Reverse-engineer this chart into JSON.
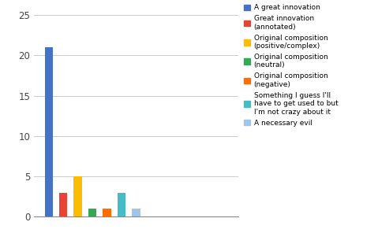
{
  "values": [
    21,
    3,
    5,
    1,
    1,
    3,
    1
  ],
  "colors": [
    "#4472C4",
    "#E84335",
    "#FBBC04",
    "#34A853",
    "#FF6D00",
    "#46BDC6",
    "#9FC5E8"
  ],
  "legend_labels": [
    "A great innovation",
    "Great innovation\n(annotated)",
    "Original composition\n(positive/complex)",
    "Original composition\n(neutral)",
    "Original composition\n(negative)",
    "Something I guess I'll\nhave to get used to but\nI'm not crazy about it",
    "A necessary evil"
  ],
  "ylim": [
    0,
    26
  ],
  "yticks": [
    0,
    5,
    10,
    15,
    20,
    25
  ],
  "background_color": "#ffffff",
  "grid_color": "#cccccc",
  "bar_width": 0.55,
  "legend_fontsize": 6.5,
  "ytick_fontsize": 8.5
}
